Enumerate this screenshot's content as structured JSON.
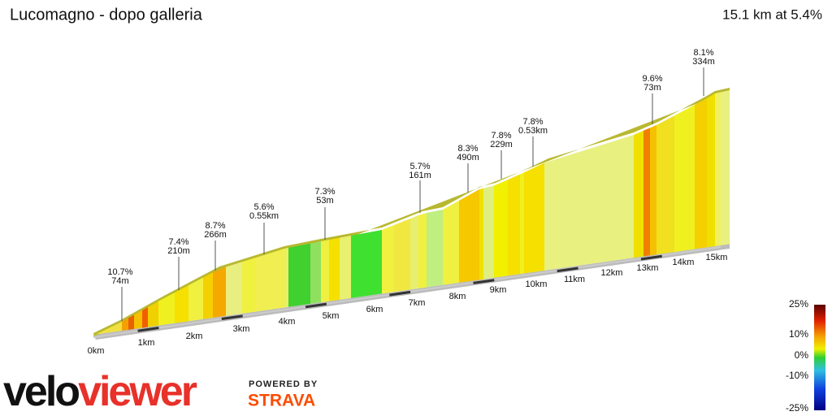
{
  "header": {
    "title": "Lucomagno - dopo galleria",
    "summary": "15.1 km at 5.4%"
  },
  "annotations": [
    {
      "grade": "10.7%",
      "length": "74m"
    },
    {
      "grade": "7.4%",
      "length": "210m"
    },
    {
      "grade": "8.7%",
      "length": "266m"
    },
    {
      "grade": "5.6%",
      "length": "0.55km"
    },
    {
      "grade": "7.3%",
      "length": "53m"
    },
    {
      "grade": "5.7%",
      "length": "161m"
    },
    {
      "grade": "8.3%",
      "length": "490m"
    },
    {
      "grade": "7.8%",
      "length": "229m"
    },
    {
      "grade": "7.8%",
      "length": "0.53km"
    },
    {
      "grade": "9.6%",
      "length": "73m"
    },
    {
      "grade": "8.1%",
      "length": "334m"
    }
  ],
  "distances": [
    "0km",
    "1km",
    "2km",
    "3km",
    "4km",
    "5km",
    "6km",
    "7km",
    "8km",
    "9km",
    "10km",
    "11km",
    "12km",
    "13km",
    "14km",
    "15km"
  ],
  "legend": [
    "25%",
    "10%",
    "0%",
    "-10%",
    "-25%"
  ],
  "logo": {
    "part1": "velo",
    "part2": "viewer",
    "powered": "POWERED BY",
    "brand": "STRAVA"
  }
}
